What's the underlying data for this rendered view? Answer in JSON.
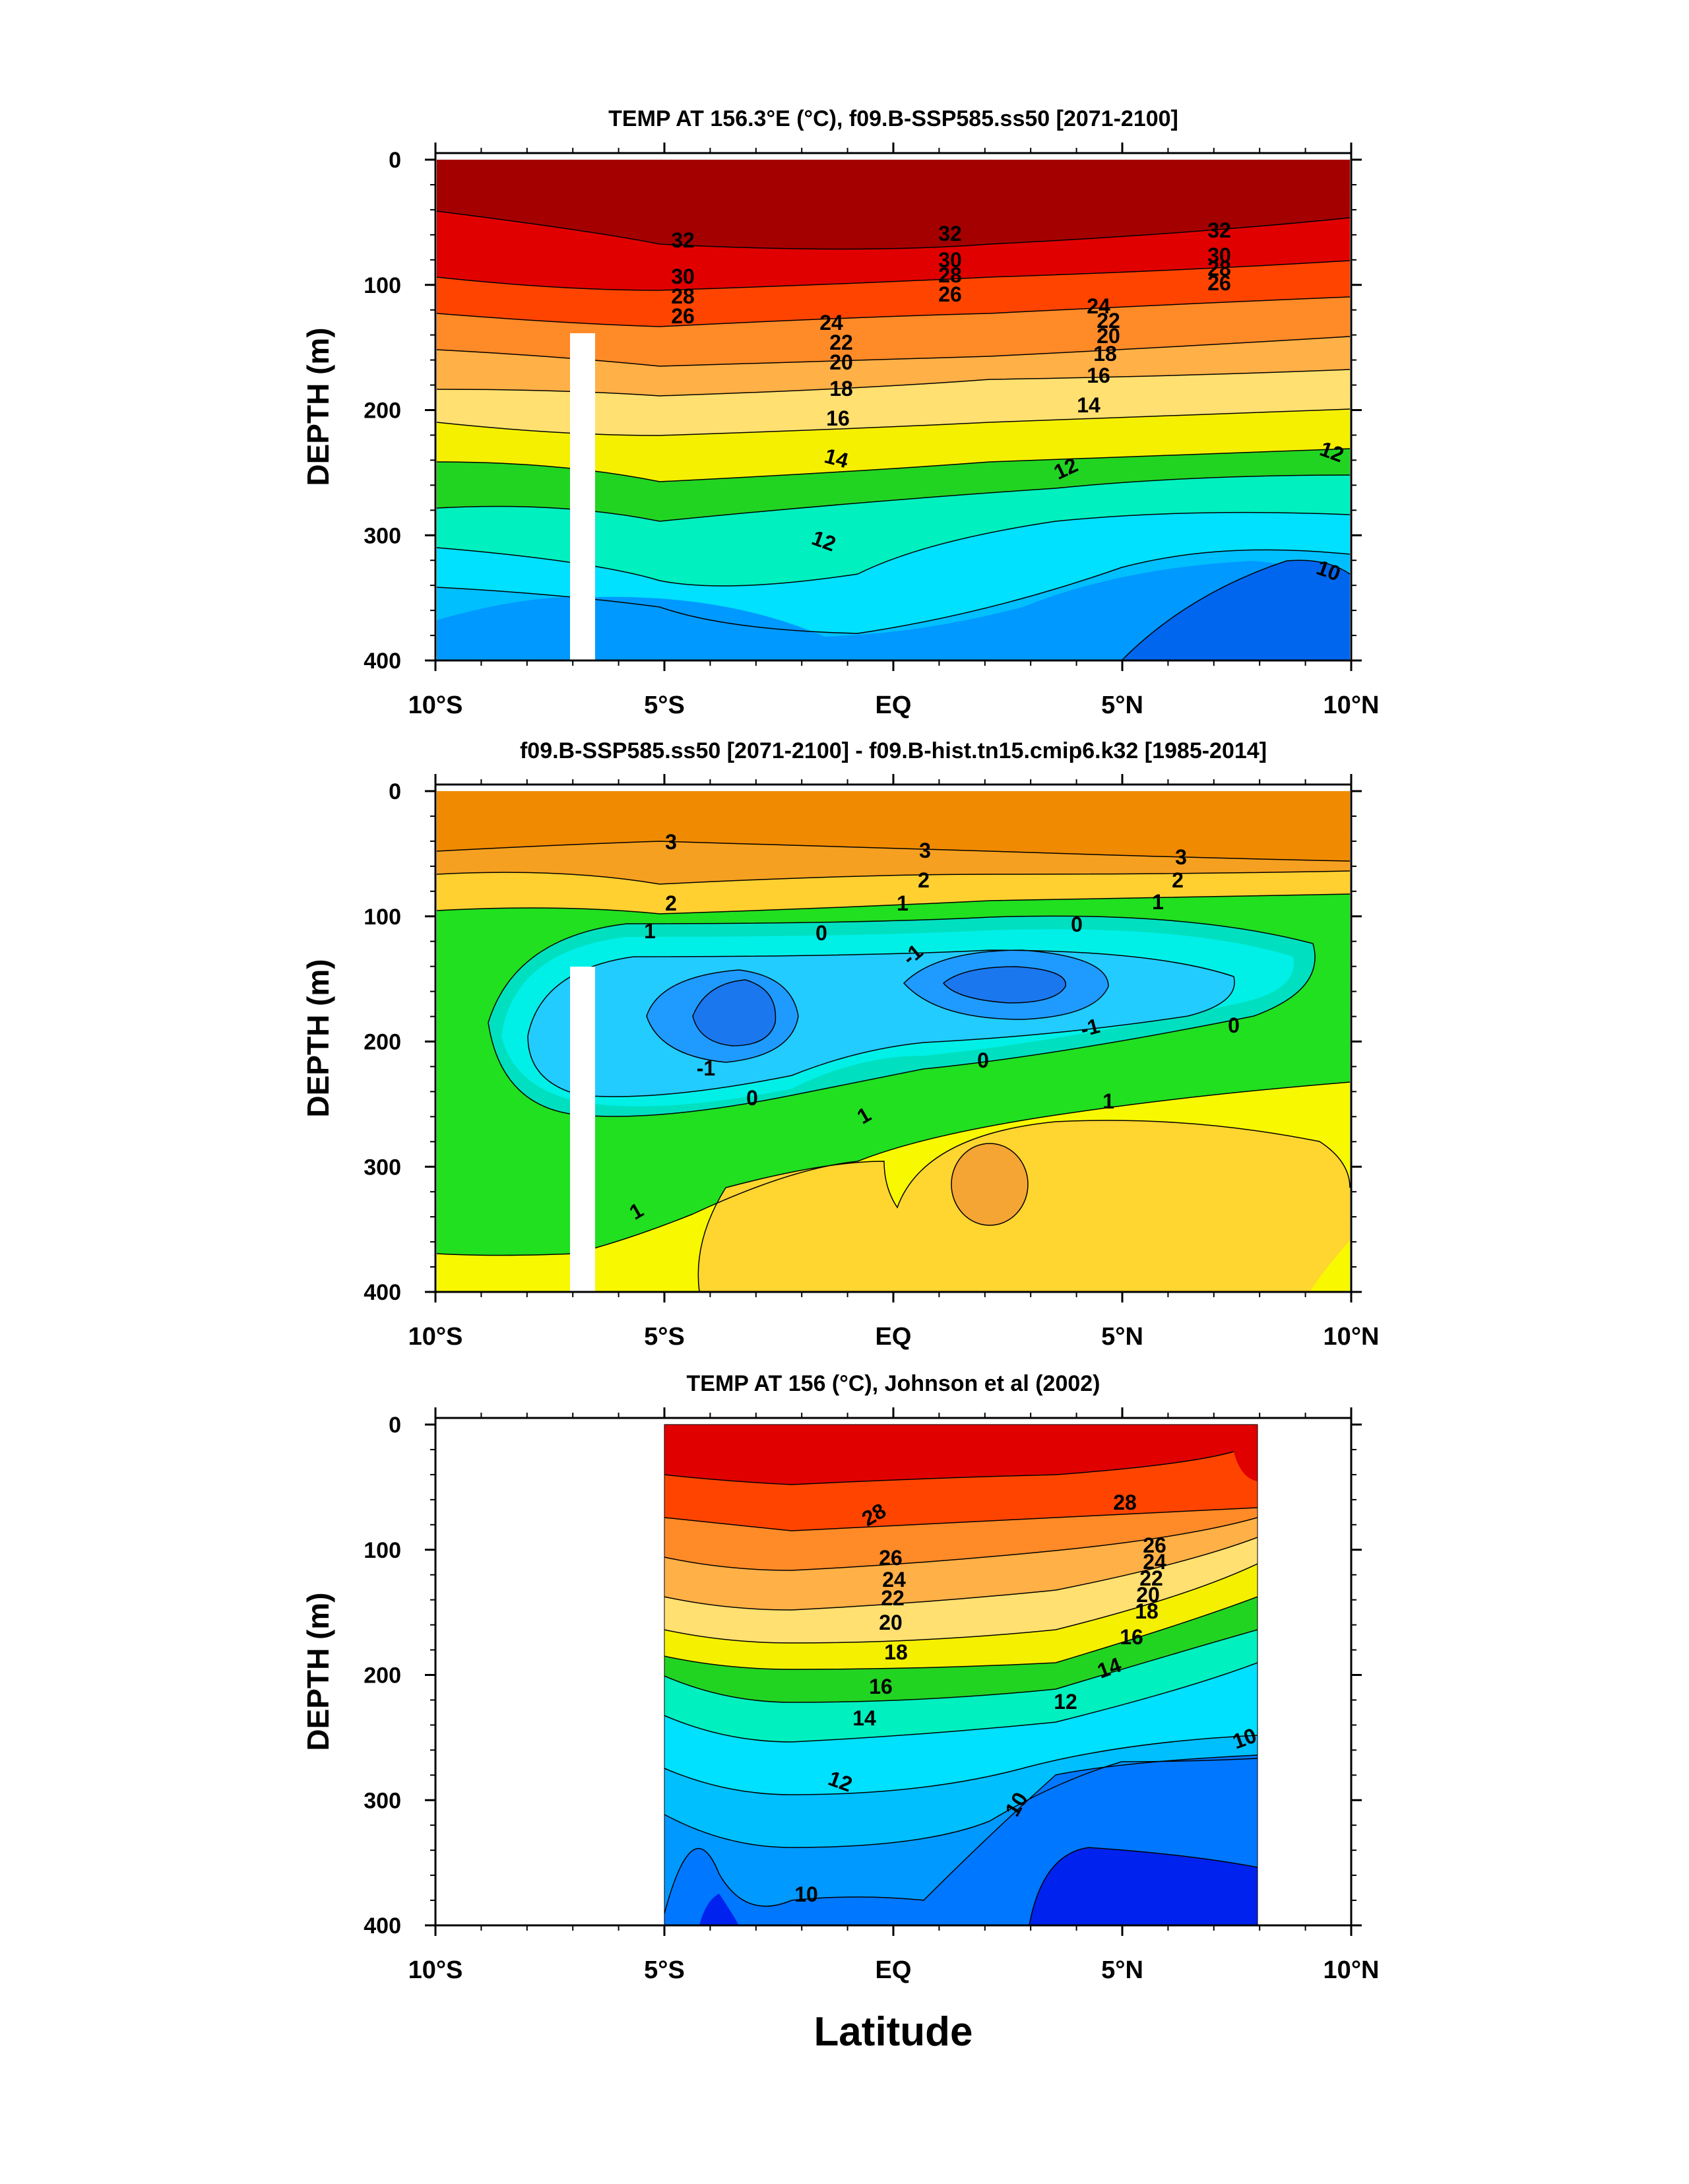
{
  "figure": {
    "xlabel": "Latitude",
    "ylabel": "DEPTH (m)",
    "yticks": [
      "0",
      "100",
      "200",
      "300",
      "400"
    ],
    "xticks": [
      "10°S",
      "5°S",
      "EQ",
      "5°N",
      "10°N"
    ],
    "xtick_values": [
      -10,
      -5,
      0,
      5,
      10
    ]
  },
  "chart_data": [
    {
      "type": "heatmap",
      "panel": "model-temperature",
      "title": "TEMP AT 156.3°E (°C), f09.B-SSP585.ss50 [2071-2100]",
      "xlabel": "",
      "ylabel": "DEPTH (m)",
      "xlim": [
        -10,
        10
      ],
      "ylim": [
        400,
        0
      ],
      "x_range_data": [
        -10,
        10
      ],
      "masked_column": {
        "x": [
          -7.1,
          -6.6
        ],
        "depth_top": 145
      },
      "contours": [
        {
          "level": 32,
          "depth": [
            {
              "x": -10,
              "d": 45
            },
            {
              "x": -5,
              "d": 65
            },
            {
              "x": -2,
              "d": 75
            },
            {
              "x": 0,
              "d": 70
            },
            {
              "x": 4,
              "d": 70
            },
            {
              "x": 7,
              "d": 65
            },
            {
              "x": 10,
              "d": 50
            }
          ]
        },
        {
          "level": 30,
          "depth": [
            {
              "x": -10,
              "d": 72
            },
            {
              "x": -5,
              "d": 95
            },
            {
              "x": -2,
              "d": 100
            },
            {
              "x": 0,
              "d": 90
            },
            {
              "x": 4,
              "d": 88
            },
            {
              "x": 7,
              "d": 83
            },
            {
              "x": 10,
              "d": 75
            }
          ]
        },
        {
          "level": 28,
          "depth": [
            {
              "x": -10,
              "d": 85
            },
            {
              "x": -5,
              "d": 108
            },
            {
              "x": -2,
              "d": 115
            },
            {
              "x": 0,
              "d": 105
            },
            {
              "x": 4,
              "d": 100
            },
            {
              "x": 7,
              "d": 95
            },
            {
              "x": 10,
              "d": 88
            }
          ]
        },
        {
          "level": 26,
          "depth": [
            {
              "x": -10,
              "d": 100
            },
            {
              "x": -5,
              "d": 122
            },
            {
              "x": -2,
              "d": 128
            },
            {
              "x": 0,
              "d": 117
            },
            {
              "x": 4,
              "d": 110
            },
            {
              "x": 7,
              "d": 105
            },
            {
              "x": 10,
              "d": 100
            }
          ]
        },
        {
          "level": 24,
          "depth": [
            {
              "x": -10,
              "d": 115
            },
            {
              "x": -5,
              "d": 140
            },
            {
              "x": -2,
              "d": 143
            },
            {
              "x": 0,
              "d": 130
            },
            {
              "x": 4,
              "d": 122
            },
            {
              "x": 7,
              "d": 117
            },
            {
              "x": 10,
              "d": 113
            }
          ]
        },
        {
          "level": 22,
          "depth": [
            {
              "x": -10,
              "d": 133
            },
            {
              "x": -5,
              "d": 158
            },
            {
              "x": -2,
              "d": 157
            },
            {
              "x": 0,
              "d": 145
            },
            {
              "x": 4,
              "d": 135
            },
            {
              "x": 7,
              "d": 128
            },
            {
              "x": 10,
              "d": 125
            }
          ]
        },
        {
          "level": 20,
          "depth": [
            {
              "x": -10,
              "d": 157
            },
            {
              "x": -5,
              "d": 175
            },
            {
              "x": -2,
              "d": 171
            },
            {
              "x": 0,
              "d": 158
            },
            {
              "x": 4,
              "d": 147
            },
            {
              "x": 7,
              "d": 140
            },
            {
              "x": 10,
              "d": 137
            }
          ]
        },
        {
          "level": 18,
          "depth": [
            {
              "x": -10,
              "d": 190
            },
            {
              "x": -5,
              "d": 190
            },
            {
              "x": -2,
              "d": 185
            },
            {
              "x": 0,
              "d": 170
            },
            {
              "x": 4,
              "d": 160
            },
            {
              "x": 7,
              "d": 152
            },
            {
              "x": 10,
              "d": 150
            }
          ]
        },
        {
          "level": 16,
          "depth": [
            {
              "x": -10,
              "d": 218
            },
            {
              "x": -5,
              "d": 205
            },
            {
              "x": -2,
              "d": 215
            },
            {
              "x": 0,
              "d": 190
            },
            {
              "x": 4,
              "d": 175
            },
            {
              "x": 7,
              "d": 168
            },
            {
              "x": 10,
              "d": 168
            }
          ]
        },
        {
          "level": 14,
          "depth": [
            {
              "x": -10,
              "d": 250
            },
            {
              "x": -5,
              "d": 230
            },
            {
              "x": -3,
              "d": 215
            },
            {
              "x": -1,
              "d": 260
            },
            {
              "x": 2,
              "d": 225
            },
            {
              "x": 5,
              "d": 200
            },
            {
              "x": 7,
              "d": 195
            },
            {
              "x": 10,
              "d": 195
            }
          ]
        },
        {
          "level": 12,
          "depth": [
            {
              "x": -10,
              "d": 300
            },
            {
              "x": -5,
              "d": 280
            },
            {
              "x": -3,
              "d": 255
            },
            {
              "x": -1,
              "d": 310
            },
            {
              "x": 2,
              "d": 300
            },
            {
              "x": 5,
              "d": 245
            },
            {
              "x": 7,
              "d": 220
            },
            {
              "x": 10,
              "d": 230
            }
          ]
        },
        {
          "level": 10,
          "depth": [
            {
              "x": 5,
              "d": 400
            },
            {
              "x": 7,
              "d": 330
            },
            {
              "x": 9,
              "d": 318
            },
            {
              "x": 10,
              "d": 330
            }
          ]
        }
      ]
    },
    {
      "type": "heatmap",
      "panel": "temperature-difference",
      "title": "f09.B-SSP585.ss50 [2071-2100] - f09.B-hist.tn15.cmip6.k32 [1985-2014]",
      "xlabel": "",
      "ylabel": "DEPTH (m)",
      "xlim": [
        -10,
        10
      ],
      "ylim": [
        400,
        0
      ],
      "x_range_data": [
        -10,
        10
      ],
      "masked_column": {
        "x": [
          -7.1,
          -6.6
        ],
        "depth_top": 145
      },
      "contours": [
        {
          "level": 3,
          "depth": [
            {
              "x": -10,
              "d": 50
            },
            {
              "x": -5,
              "d": 40
            },
            {
              "x": 0,
              "d": 45
            },
            {
              "x": 5,
              "d": 53
            },
            {
              "x": 10,
              "d": 55
            }
          ]
        },
        {
          "level": 2,
          "depth": [
            {
              "x": -10,
              "d": 95
            },
            {
              "x": -5,
              "d": 85
            },
            {
              "x": 0,
              "d": 72
            },
            {
              "x": 5,
              "d": 70
            },
            {
              "x": 10,
              "d": 65
            }
          ]
        },
        {
          "level": 1,
          "depth": [
            {
              "x": -10,
              "d": 120
            },
            {
              "x": -5,
              "d": 110
            },
            {
              "x": 0,
              "d": 90
            },
            {
              "x": 5,
              "d": 88
            },
            {
              "x": 10,
              "d": 80
            }
          ]
        },
        {
          "level": 0,
          "depth": [
            {
              "x": -10,
              "d": 190
            },
            {
              "x": -7,
              "d": 150
            },
            {
              "x": -5,
              "d": 120
            },
            {
              "x": 0,
              "d": 115
            },
            {
              "x": 5,
              "d": 110
            },
            {
              "x": 10,
              "d": 120
            }
          ]
        },
        {
          "level": -1,
          "depth": [
            {
              "x": -8,
              "d": 215
            },
            {
              "x": -5.5,
              "d": 175
            },
            {
              "x": -3,
              "d": 200
            },
            {
              "x": 0,
              "d": 150
            },
            {
              "x": 3,
              "d": 195
            },
            {
              "x": 6,
              "d": 180
            }
          ]
        },
        {
          "level": 1,
          "depth": [
            {
              "x": -10,
              "d": 330
            },
            {
              "x": -6,
              "d": 340
            },
            {
              "x": -3,
              "d": 275
            },
            {
              "x": 0,
              "d": 260
            },
            {
              "x": 5,
              "d": 250
            },
            {
              "x": 10,
              "d": 255
            }
          ]
        }
      ]
    },
    {
      "type": "heatmap",
      "panel": "observed-temperature",
      "title": "TEMP AT 156 (°C), Johnson et al (2002)",
      "xlabel": "Latitude",
      "ylabel": "DEPTH (m)",
      "xlim": [
        -10,
        10
      ],
      "ylim": [
        400,
        0
      ],
      "x_range_data": [
        -5,
        8
      ],
      "contours": [
        {
          "level": 28,
          "depth": [
            {
              "x": -5,
              "d": 55
            },
            {
              "x": 0,
              "d": 80
            },
            {
              "x": 5,
              "d": 65
            },
            {
              "x": 8,
              "d": 60
            }
          ]
        },
        {
          "level": 26,
          "depth": [
            {
              "x": -5,
              "d": 110
            },
            {
              "x": 0,
              "d": 110
            },
            {
              "x": 5,
              "d": 105
            },
            {
              "x": 8,
              "d": 95
            }
          ]
        },
        {
          "level": 24,
          "depth": [
            {
              "x": -5,
              "d": 130
            },
            {
              "x": 0,
              "d": 130
            },
            {
              "x": 5,
              "d": 120
            },
            {
              "x": 8,
              "d": 105
            }
          ]
        },
        {
          "level": 22,
          "depth": [
            {
              "x": -5,
              "d": 150
            },
            {
              "x": 0,
              "d": 150
            },
            {
              "x": 5,
              "d": 135
            },
            {
              "x": 8,
              "d": 115
            }
          ]
        },
        {
          "level": 20,
          "depth": [
            {
              "x": -5,
              "d": 165
            },
            {
              "x": 0,
              "d": 170
            },
            {
              "x": 5,
              "d": 150
            },
            {
              "x": 8,
              "d": 125
            }
          ]
        },
        {
          "level": 18,
          "depth": [
            {
              "x": -5,
              "d": 185
            },
            {
              "x": 0,
              "d": 190
            },
            {
              "x": 5,
              "d": 165
            },
            {
              "x": 8,
              "d": 140
            }
          ]
        },
        {
          "level": 16,
          "depth": [
            {
              "x": -5,
              "d": 205
            },
            {
              "x": 0,
              "d": 215
            },
            {
              "x": 5,
              "d": 180
            },
            {
              "x": 8,
              "d": 160
            }
          ]
        },
        {
          "level": 14,
          "depth": [
            {
              "x": -5,
              "d": 230
            },
            {
              "x": 0,
              "d": 240
            },
            {
              "x": 5,
              "d": 200
            },
            {
              "x": 8,
              "d": 185
            }
          ]
        },
        {
          "level": 12,
          "depth": [
            {
              "x": -5,
              "d": 270
            },
            {
              "x": 0,
              "d": 280
            },
            {
              "x": 3,
              "d": 270
            },
            {
              "x": 5,
              "d": 250
            },
            {
              "x": 8,
              "d": 235
            }
          ]
        },
        {
          "level": 10,
          "depth": [
            {
              "x": -5,
              "d": 355
            },
            {
              "x": -2,
              "d": 380
            },
            {
              "x": 2,
              "d": 350
            },
            {
              "x": 4,
              "d": 285
            },
            {
              "x": 8,
              "d": 270
            }
          ]
        }
      ]
    }
  ]
}
